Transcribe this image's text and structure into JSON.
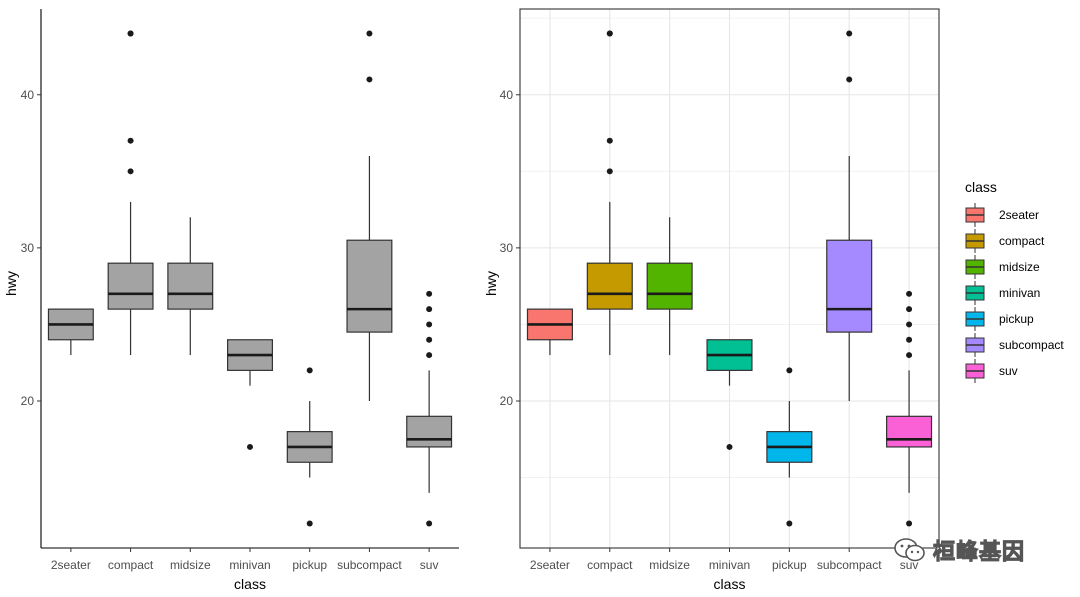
{
  "chart_data": [
    {
      "type": "box",
      "panel": "left",
      "theme": "classic",
      "xlabel": "class",
      "ylabel": "hwy",
      "ylim": [
        10.4,
        45.6
      ],
      "yticks": [
        20,
        30,
        40
      ],
      "grid": false,
      "fill": "#a3a3a3",
      "categories": [
        "2seater",
        "compact",
        "midsize",
        "minivan",
        "pickup",
        "subcompact",
        "suv"
      ],
      "boxes": [
        {
          "category": "2seater",
          "lower_whisker": 23,
          "q1": 24,
          "median": 25,
          "q3": 26,
          "upper_whisker": 26,
          "outliers": []
        },
        {
          "category": "compact",
          "lower_whisker": 23,
          "q1": 26,
          "median": 27,
          "q3": 29,
          "upper_whisker": 33,
          "outliers": [
            35,
            37,
            44,
            44
          ]
        },
        {
          "category": "midsize",
          "lower_whisker": 23,
          "q1": 26,
          "median": 27,
          "q3": 29,
          "upper_whisker": 32,
          "outliers": []
        },
        {
          "category": "minivan",
          "lower_whisker": 21,
          "q1": 22,
          "median": 23,
          "q3": 24,
          "upper_whisker": 24,
          "outliers": [
            17
          ]
        },
        {
          "category": "pickup",
          "lower_whisker": 15,
          "q1": 16,
          "median": 17,
          "q3": 18,
          "upper_whisker": 20,
          "outliers": [
            12,
            22
          ]
        },
        {
          "category": "subcompact",
          "lower_whisker": 20,
          "q1": 24.5,
          "median": 26,
          "q3": 30.5,
          "upper_whisker": 36,
          "outliers": [
            41,
            44
          ]
        },
        {
          "category": "suv",
          "lower_whisker": 14,
          "q1": 17,
          "median": 17.5,
          "q3": 19,
          "upper_whisker": 22,
          "outliers": [
            12,
            23,
            24,
            25,
            26,
            27
          ]
        }
      ]
    },
    {
      "type": "box",
      "panel": "right",
      "theme": "bw",
      "xlabel": "class",
      "ylabel": "hwy",
      "ylim": [
        10.4,
        45.6
      ],
      "yticks": [
        20,
        30,
        40
      ],
      "grid": true,
      "categories": [
        "2seater",
        "compact",
        "midsize",
        "minivan",
        "pickup",
        "subcompact",
        "suv"
      ],
      "colors": [
        "#F8766D",
        "#C49A00",
        "#53B400",
        "#00C094",
        "#00B6EB",
        "#A58AFF",
        "#FB61D7"
      ],
      "legend": {
        "title": "class",
        "position": "right",
        "entries": [
          "2seater",
          "compact",
          "midsize",
          "minivan",
          "pickup",
          "subcompact",
          "suv"
        ]
      },
      "boxes": [
        {
          "category": "2seater",
          "lower_whisker": 23,
          "q1": 24,
          "median": 25,
          "q3": 26,
          "upper_whisker": 26,
          "outliers": []
        },
        {
          "category": "compact",
          "lower_whisker": 23,
          "q1": 26,
          "median": 27,
          "q3": 29,
          "upper_whisker": 33,
          "outliers": [
            35,
            37,
            44,
            44
          ]
        },
        {
          "category": "midsize",
          "lower_whisker": 23,
          "q1": 26,
          "median": 27,
          "q3": 29,
          "upper_whisker": 32,
          "outliers": []
        },
        {
          "category": "minivan",
          "lower_whisker": 21,
          "q1": 22,
          "median": 23,
          "q3": 24,
          "upper_whisker": 24,
          "outliers": [
            17
          ]
        },
        {
          "category": "pickup",
          "lower_whisker": 15,
          "q1": 16,
          "median": 17,
          "q3": 18,
          "upper_whisker": 20,
          "outliers": [
            12,
            22
          ]
        },
        {
          "category": "subcompact",
          "lower_whisker": 20,
          "q1": 24.5,
          "median": 26,
          "q3": 30.5,
          "upper_whisker": 36,
          "outliers": [
            41,
            44
          ]
        },
        {
          "category": "suv",
          "lower_whisker": 14,
          "q1": 17,
          "median": 17.5,
          "q3": 19,
          "upper_whisker": 22,
          "outliers": [
            12,
            23,
            24,
            25,
            26,
            27
          ]
        }
      ]
    }
  ],
  "watermark": {
    "text": "桓峰基因",
    "icon": "wechat-icon"
  }
}
